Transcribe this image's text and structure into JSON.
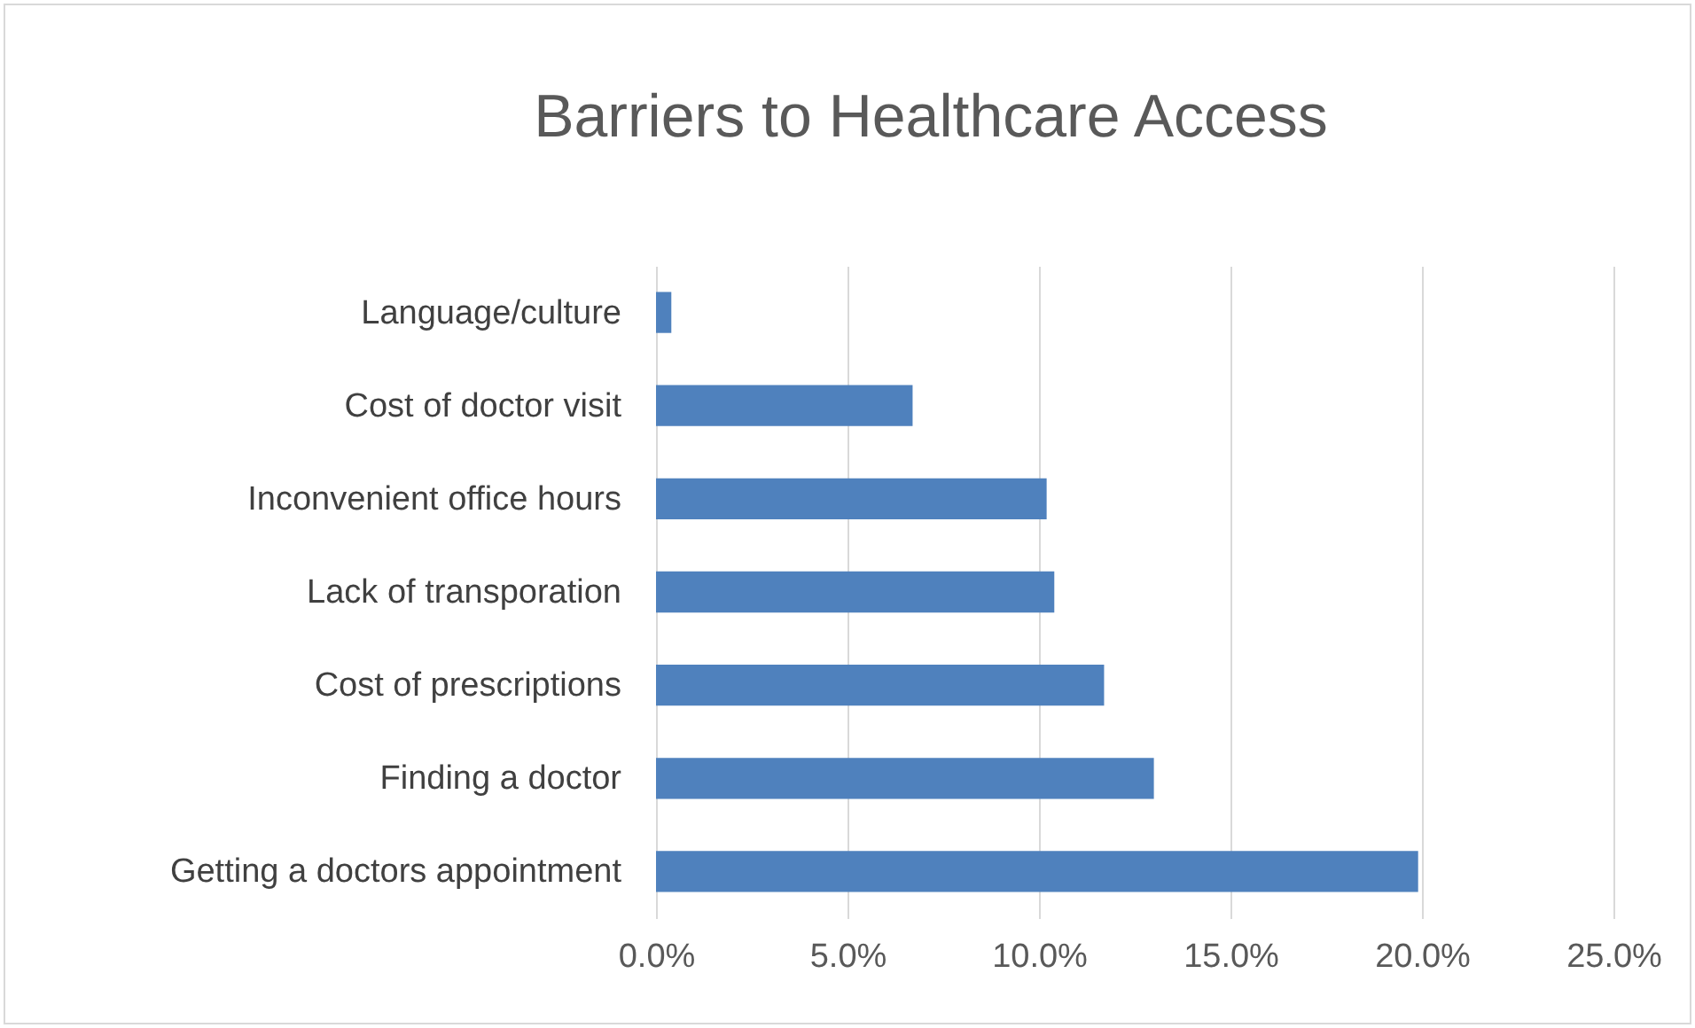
{
  "chart_data": {
    "type": "bar",
    "orientation": "horizontal",
    "title": "Barriers to Healthcare Access",
    "categories": [
      "Language/culture",
      "Cost of doctor visit",
      "Inconvenient office hours",
      "Lack of transporation",
      "Cost of prescriptions",
      "Finding a doctor",
      "Getting a doctors appointment"
    ],
    "values": [
      0.4,
      6.7,
      10.2,
      10.4,
      11.7,
      13.0,
      19.9
    ],
    "color": "#4f81bd",
    "xlim": [
      0,
      25
    ],
    "xticks": [
      {
        "value": 0,
        "label": "0.0%"
      },
      {
        "value": 5,
        "label": "5.0%"
      },
      {
        "value": 10,
        "label": "10.0%"
      },
      {
        "value": 15,
        "label": "15.0%"
      },
      {
        "value": 20,
        "label": "20.0%"
      },
      {
        "value": 25,
        "label": "25.0%"
      }
    ],
    "grid": "x"
  }
}
